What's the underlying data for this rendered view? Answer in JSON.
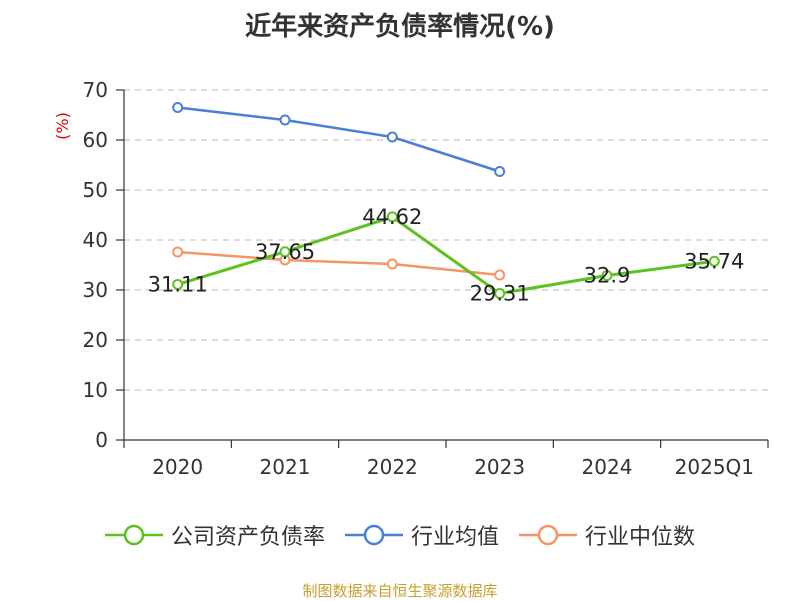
{
  "chart_data": {
    "type": "line",
    "title": "近年来资产负债率情况(%)",
    "ylabel": "(%)",
    "xlabel": "",
    "categories": [
      "2020",
      "2021",
      "2022",
      "2023",
      "2024",
      "2025Q1"
    ],
    "ylim": [
      0,
      70
    ],
    "yticks": [
      0,
      10,
      20,
      30,
      40,
      50,
      60,
      70
    ],
    "grid": "horizontal dashed",
    "legend_position": "bottom",
    "series": [
      {
        "name": "公司资产负债率",
        "color": "#5cc21f",
        "values": [
          31.11,
          37.65,
          44.62,
          29.31,
          32.9,
          35.74
        ],
        "labels": [
          "31.11",
          "37.65",
          "44.62",
          "29.31",
          "32.9",
          "35.74"
        ]
      },
      {
        "name": "行业均值",
        "color": "#4a7fd8",
        "values": [
          66.5,
          64.0,
          60.6,
          53.7,
          null,
          null
        ]
      },
      {
        "name": "行业中位数",
        "color": "#f59565",
        "values": [
          37.6,
          36.0,
          35.2,
          33.0,
          null,
          null
        ]
      }
    ]
  },
  "footer": "制图数据来自恒生聚源数据库"
}
